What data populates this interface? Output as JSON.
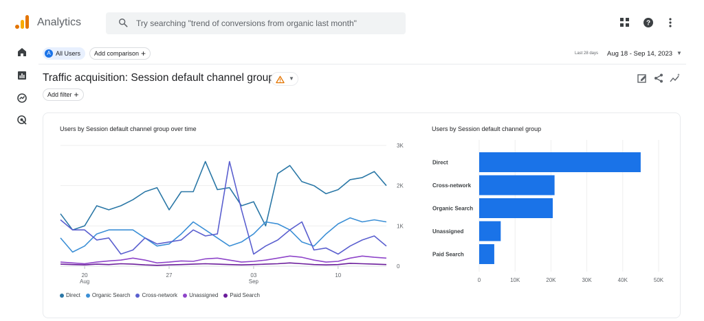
{
  "header": {
    "app_title": "Analytics",
    "search_placeholder": "Try searching \"trend of conversions from organic last month\"",
    "icons": [
      "apps-icon",
      "help-icon",
      "more-vert-icon"
    ]
  },
  "nav": {
    "icons": [
      "home-icon",
      "reports-icon",
      "explore-icon",
      "advertising-icon"
    ]
  },
  "toolbar": {
    "segment_avatar": "A",
    "segment_label": "All Users",
    "add_comparison_label": "Add comparison",
    "date_prefix": "Last 28 days",
    "date_range": "Aug 18 - Sep 14, 2023"
  },
  "report": {
    "title": "Traffic acquisition: Session default channel group",
    "add_filter_label": "Add filter"
  },
  "colors": {
    "direct": "#2a77a6",
    "organic_search": "#3b8fd6",
    "cross_network": "#5a5fcf",
    "unassigned": "#8e44c9",
    "paid_search": "#6a1b9a",
    "bar": "#1a73e8"
  },
  "chart_data": [
    {
      "type": "line",
      "title": "Users by Session default channel group over time",
      "x_ticks": [
        {
          "index": 2,
          "label": "20",
          "sublabel": "Aug"
        },
        {
          "index": 9,
          "label": "27",
          "sublabel": ""
        },
        {
          "index": 16,
          "label": "03",
          "sublabel": "Sep"
        },
        {
          "index": 23,
          "label": "10",
          "sublabel": ""
        }
      ],
      "ylim": [
        0,
        3000
      ],
      "y_ticks": [
        {
          "value": 0,
          "label": "0"
        },
        {
          "value": 1000,
          "label": "1K"
        },
        {
          "value": 2000,
          "label": "2K"
        },
        {
          "value": 3000,
          "label": "3K"
        }
      ],
      "grid": true,
      "legend_position": "bottom-left",
      "series": [
        {
          "name": "Direct",
          "color_key": "direct",
          "values": [
            1300,
            900,
            1000,
            1500,
            1400,
            1500,
            1650,
            1850,
            1950,
            1400,
            1850,
            1850,
            2600,
            1900,
            1950,
            1500,
            1600,
            1000,
            2300,
            2500,
            2100,
            2000,
            1800,
            1900,
            2150,
            2200,
            2350,
            2000
          ]
        },
        {
          "name": "Organic Search",
          "color_key": "organic_search",
          "values": [
            700,
            350,
            500,
            800,
            900,
            900,
            900,
            700,
            500,
            550,
            800,
            1100,
            900,
            700,
            500,
            600,
            800,
            1100,
            1050,
            900,
            600,
            500,
            800,
            1050,
            1200,
            1100,
            1150,
            1100
          ]
        },
        {
          "name": "Cross-network",
          "color_key": "cross_network",
          "values": [
            1150,
            900,
            900,
            650,
            700,
            300,
            400,
            700,
            550,
            600,
            650,
            900,
            750,
            800,
            2600,
            1400,
            300,
            500,
            650,
            900,
            1100,
            400,
            450,
            300,
            500,
            650,
            750,
            500
          ]
        },
        {
          "name": "Unassigned",
          "color_key": "unassigned",
          "values": [
            100,
            80,
            60,
            100,
            130,
            150,
            200,
            150,
            80,
            100,
            130,
            120,
            180,
            200,
            150,
            100,
            120,
            150,
            200,
            250,
            220,
            150,
            100,
            120,
            200,
            250,
            220,
            200
          ]
        },
        {
          "name": "Paid Search",
          "color_key": "paid_search",
          "values": [
            50,
            40,
            30,
            50,
            40,
            60,
            50,
            30,
            20,
            30,
            40,
            50,
            60,
            50,
            40,
            30,
            40,
            50,
            60,
            80,
            60,
            40,
            30,
            40,
            70,
            60,
            50,
            40
          ]
        }
      ]
    },
    {
      "type": "bar",
      "orientation": "horizontal",
      "title": "Users by Session default channel group",
      "categories": [
        "Direct",
        "Cross-network",
        "Organic Search",
        "Unassigned",
        "Paid Search"
      ],
      "values": [
        45000,
        21000,
        20500,
        6000,
        4200
      ],
      "xlim": [
        0,
        50000
      ],
      "x_ticks": [
        {
          "value": 0,
          "label": "0"
        },
        {
          "value": 10000,
          "label": "10K"
        },
        {
          "value": 20000,
          "label": "20K"
        },
        {
          "value": 30000,
          "label": "30K"
        },
        {
          "value": 40000,
          "label": "40K"
        },
        {
          "value": 50000,
          "label": "50K"
        }
      ],
      "grid": true
    }
  ]
}
